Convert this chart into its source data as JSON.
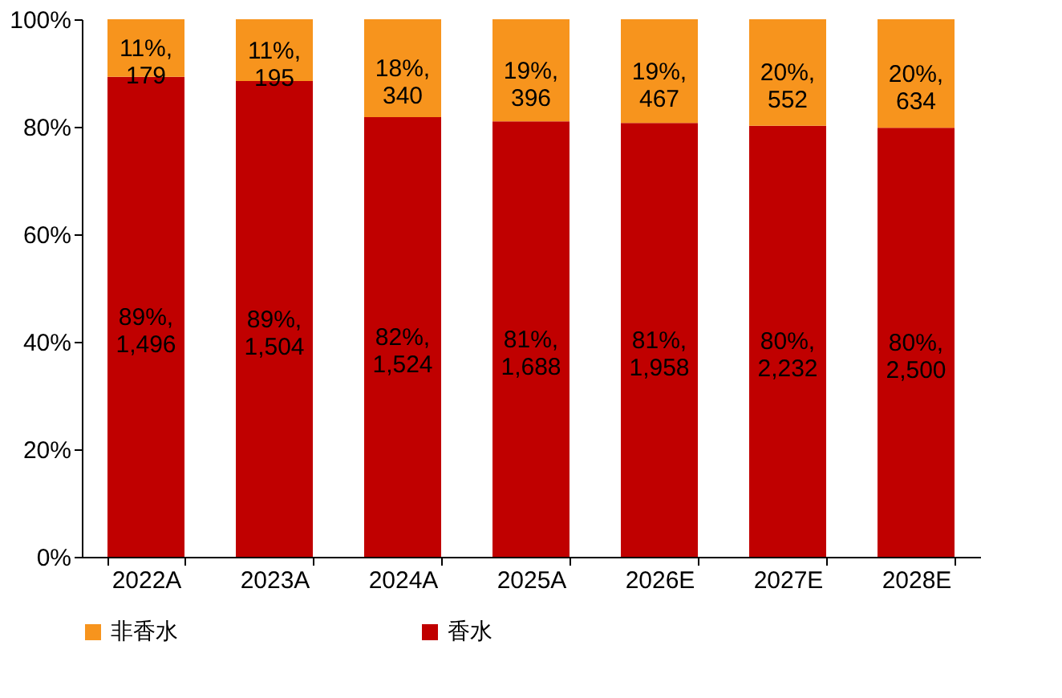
{
  "chart_data": {
    "type": "bar",
    "stacked": true,
    "categories": [
      "2022A",
      "2023A",
      "2024A",
      "2025A",
      "2026E",
      "2027E",
      "2028E"
    ],
    "series": [
      {
        "name": "香水",
        "color": "#c00000",
        "values": [
          89.3,
          88.5,
          81.8,
          81.0,
          80.7,
          80.2,
          79.8
        ],
        "value_labels": [
          "89%,\n1,496",
          "89%,\n1,504",
          "82%,\n1,524",
          "81%,\n1,688",
          "81%,\n1,958",
          "80%,\n2,232",
          "80%,\n2,500"
        ]
      },
      {
        "name": "非香水",
        "color": "#f7941d",
        "values": [
          10.7,
          11.5,
          18.2,
          19.0,
          19.3,
          19.8,
          20.2
        ],
        "value_labels": [
          "11%,\n179",
          "11%,\n195",
          "18%,\n340",
          "19%,\n396",
          "19%,\n467",
          "20%,\n552",
          "20%,\n634"
        ]
      }
    ],
    "ylim": [
      0,
      100
    ],
    "yticks": [
      {
        "value": 0,
        "label": "0%"
      },
      {
        "value": 20,
        "label": "20%"
      },
      {
        "value": 40,
        "label": "40%"
      },
      {
        "value": 60,
        "label": "60%"
      },
      {
        "value": 80,
        "label": "80%"
      },
      {
        "value": 100,
        "label": "100%"
      }
    ],
    "grid": false,
    "legend": "bottom"
  }
}
